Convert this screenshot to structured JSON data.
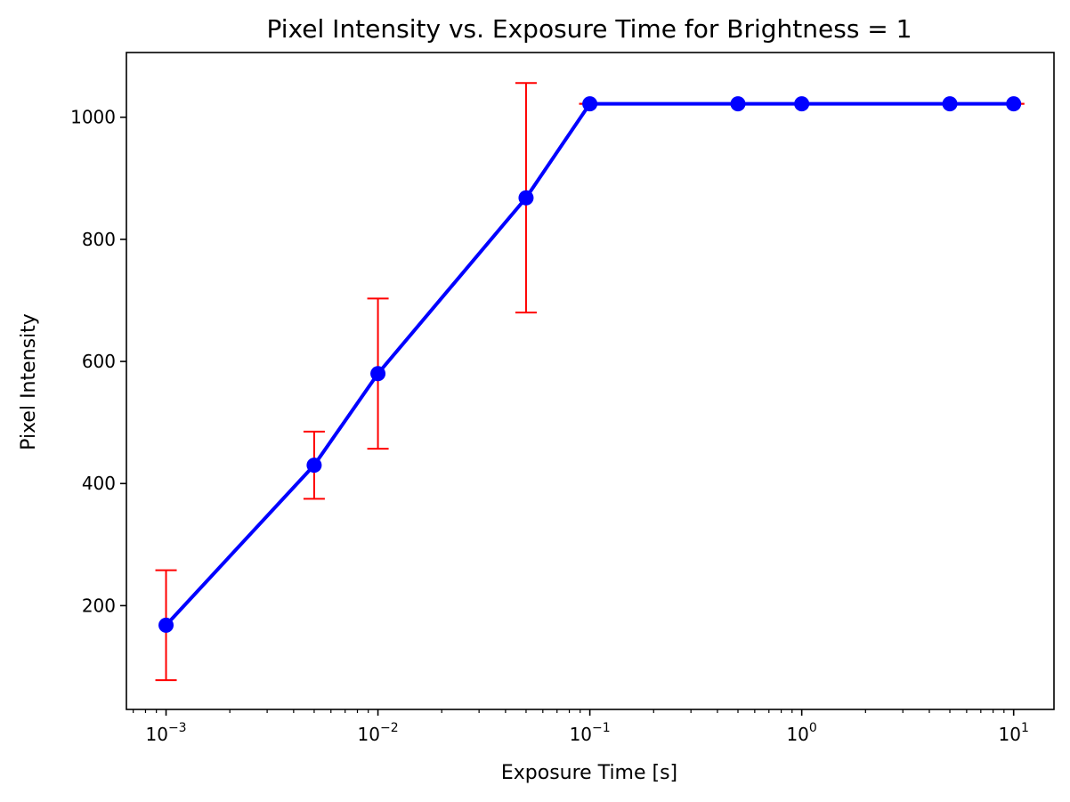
{
  "chart_data": {
    "type": "line",
    "title": "Pixel Intensity vs. Exposure Time for Brightness = 1",
    "xlabel": "Exposure Time [s]",
    "ylabel": "Pixel Intensity",
    "xscale": "log",
    "xlim": [
      0.00065,
      15.5
    ],
    "ylim": [
      30,
      1106
    ],
    "grid": false,
    "x_ticks": [
      {
        "base": "10",
        "exp": "−3",
        "value": 0.001
      },
      {
        "base": "10",
        "exp": "−2",
        "value": 0.01
      },
      {
        "base": "10",
        "exp": "−1",
        "value": 0.1
      },
      {
        "base": "10",
        "exp": "0",
        "value": 1
      },
      {
        "base": "10",
        "exp": "1",
        "value": 10
      }
    ],
    "y_ticks": [
      200,
      400,
      600,
      800,
      1000
    ],
    "series": [
      {
        "x": [
          0.001,
          0.005,
          0.01,
          0.05,
          0.1,
          0.5,
          1,
          5,
          10
        ],
        "y": [
          168,
          430,
          580,
          868,
          1022,
          1022,
          1022,
          1022,
          1022
        ],
        "error": [
          90,
          55,
          123,
          188,
          0,
          0,
          0,
          0,
          0
        ],
        "line_color": "#0000ff",
        "marker_color": "#0000ff",
        "error_color": "#ff0000"
      }
    ]
  }
}
